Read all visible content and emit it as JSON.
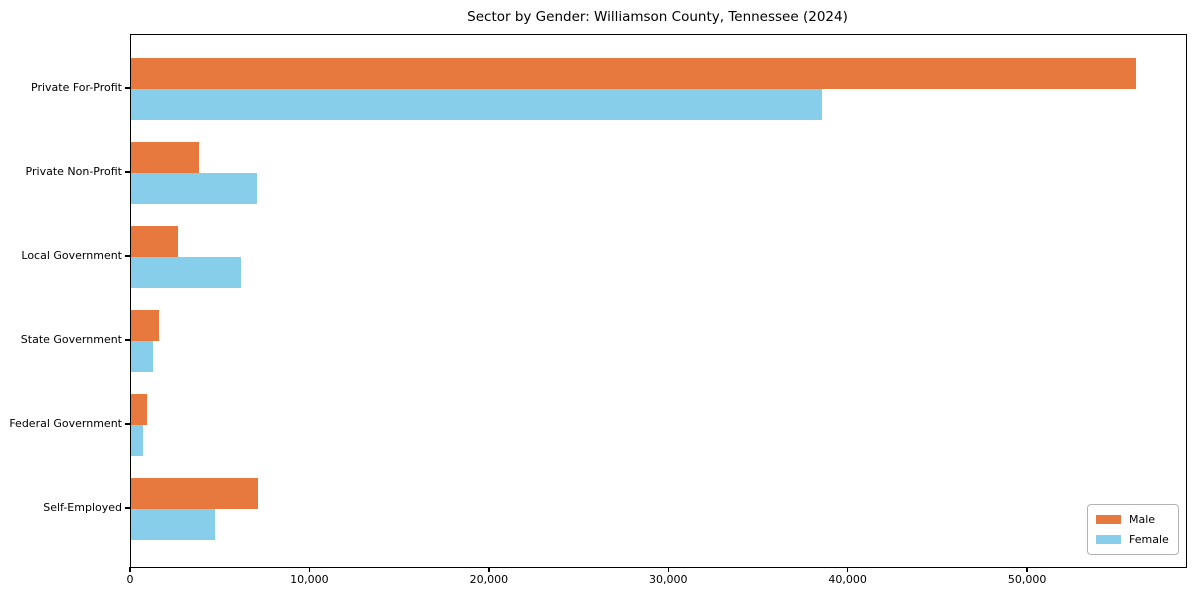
{
  "figure": {
    "background": "#ffffff",
    "text_color": "#000000"
  },
  "chart_data": {
    "type": "bar",
    "orientation": "horizontal",
    "title": "Sector by Gender: Williamson County, Tennessee (2024)",
    "categories": [
      "Private For-Profit",
      "Private Non-Profit",
      "Local Government",
      "State Government",
      "Federal Government",
      "Self-Employed"
    ],
    "series": [
      {
        "name": "Male",
        "color": "#e8793e",
        "values": [
          56000,
          3800,
          2600,
          1550,
          900,
          7100
        ]
      },
      {
        "name": "Female",
        "color": "#87ceeb",
        "values": [
          38500,
          7000,
          6150,
          1250,
          650,
          4700
        ]
      }
    ],
    "xlabel": "",
    "ylabel": "",
    "xlim": [
      0,
      58800
    ],
    "x_ticks": [
      0,
      10000,
      20000,
      30000,
      40000,
      50000
    ],
    "x_tick_labels": [
      "0",
      "10,000",
      "20,000",
      "30,000",
      "40,000",
      "50,000"
    ],
    "grid": false,
    "legend": {
      "position": "lower right",
      "entries": [
        "Male",
        "Female"
      ]
    }
  }
}
